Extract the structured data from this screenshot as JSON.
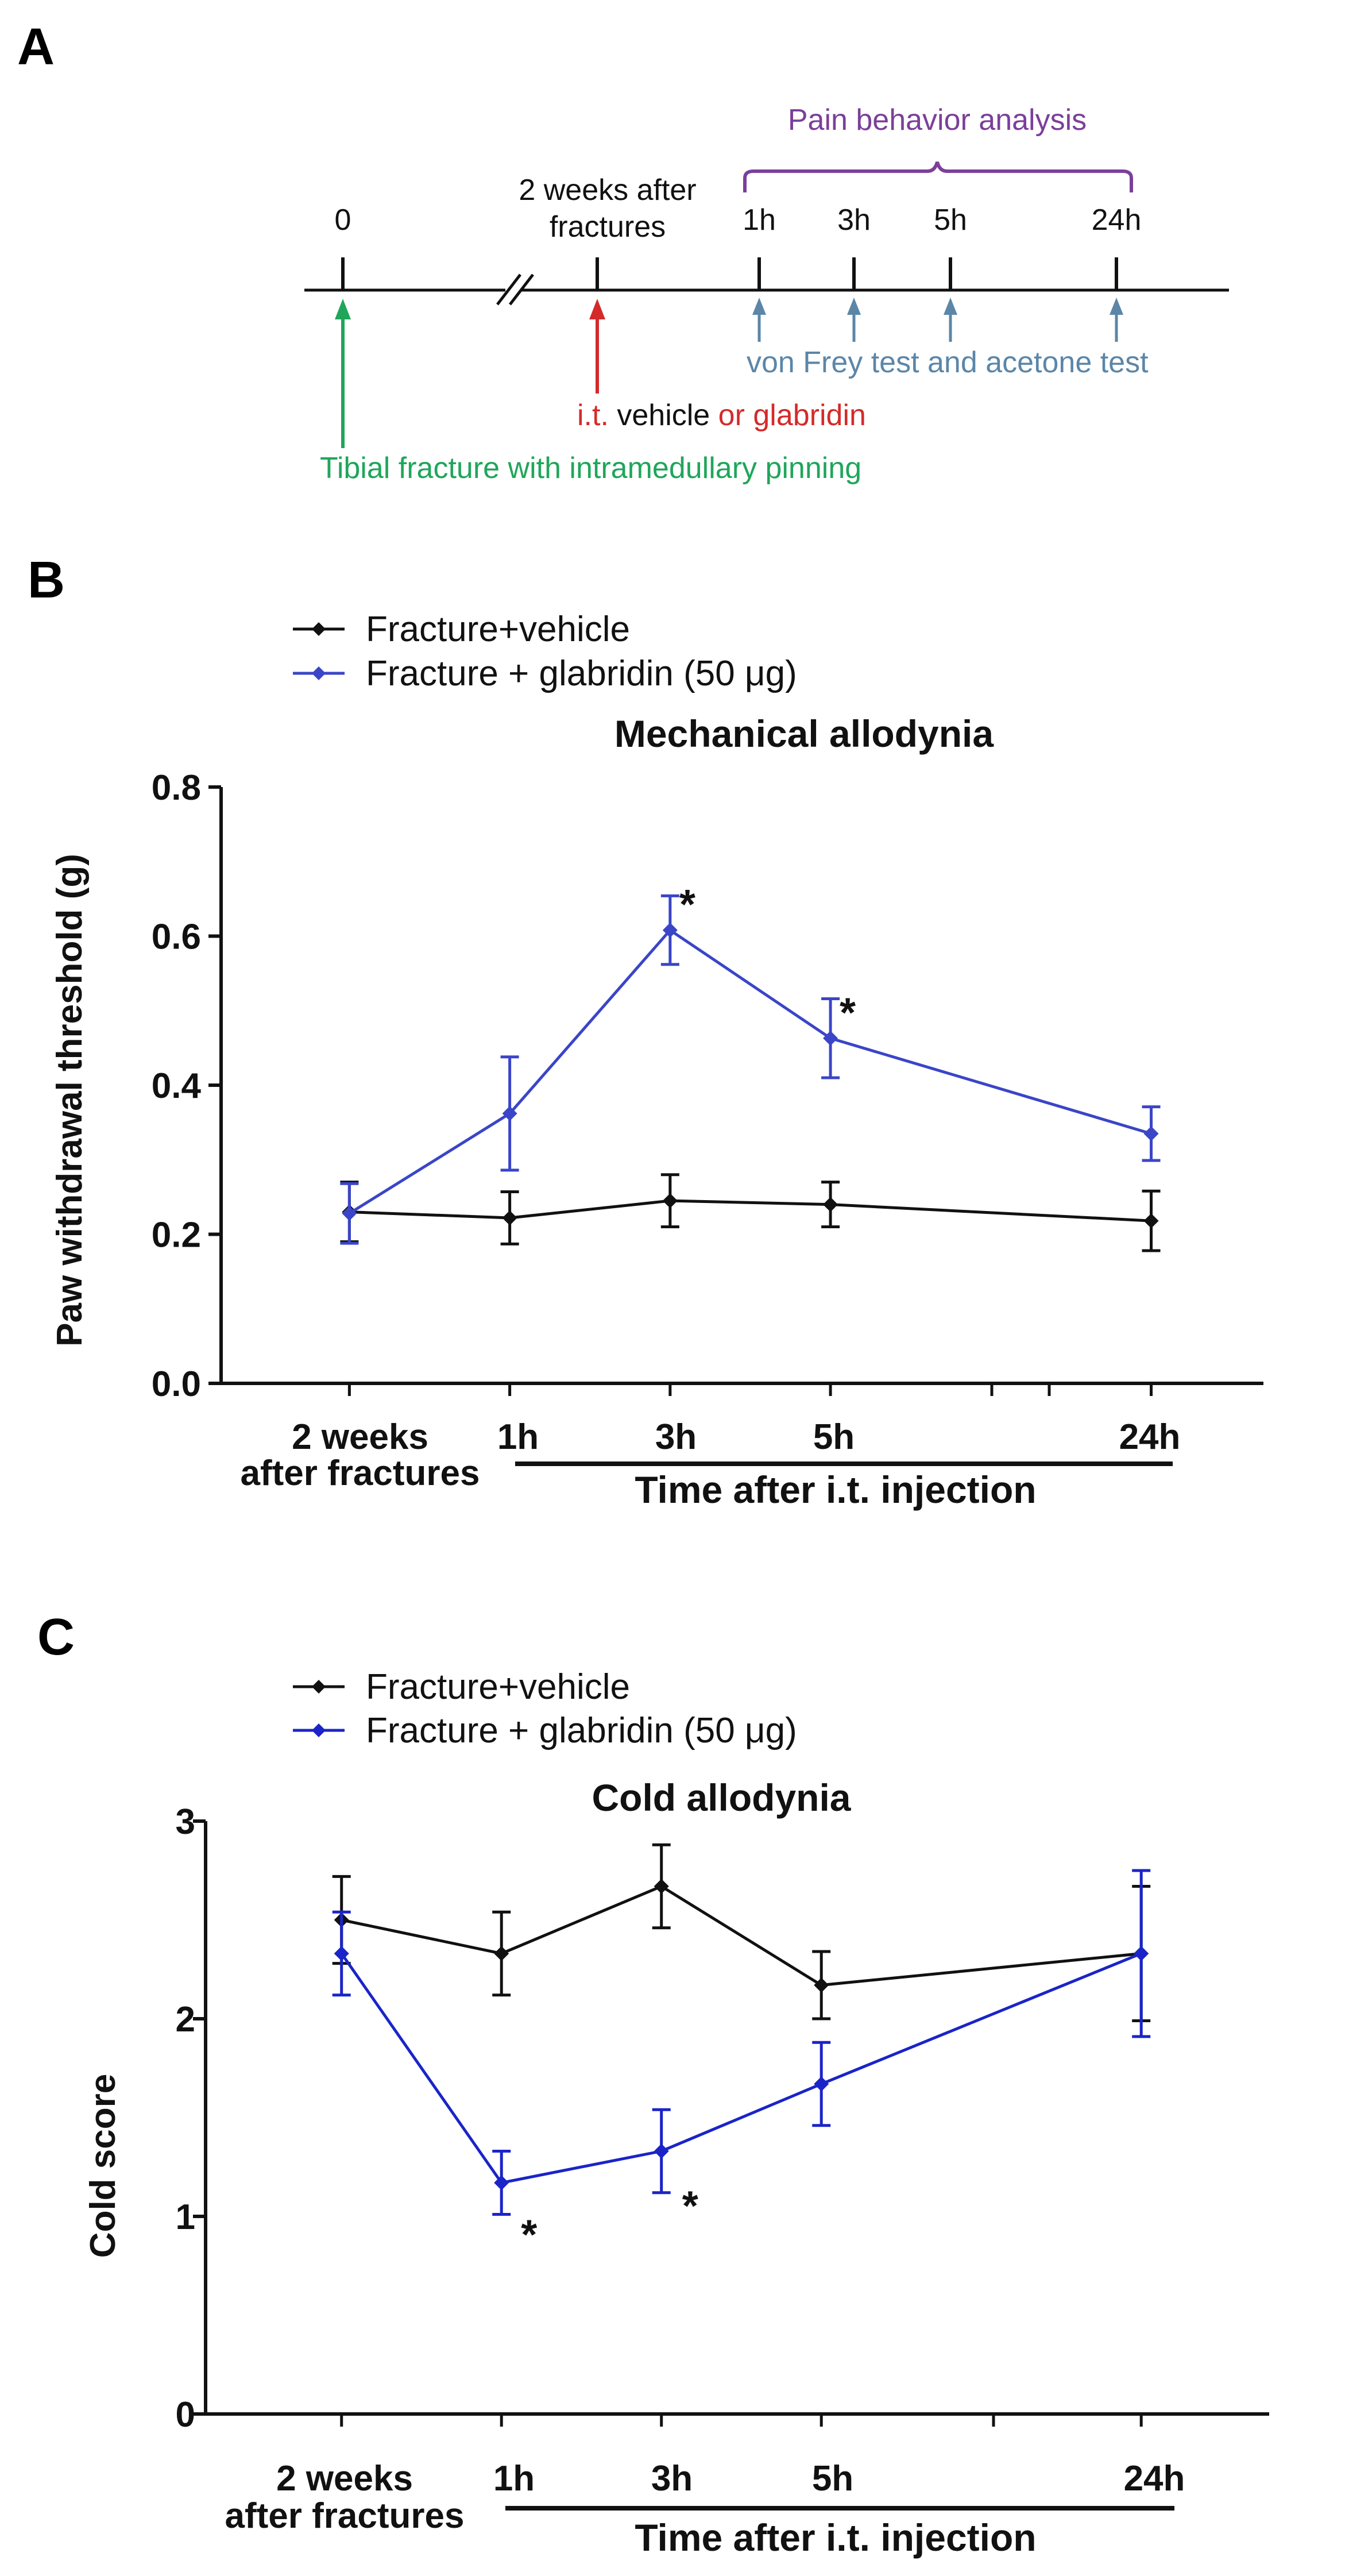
{
  "panels": {
    "a": "A",
    "b": "B",
    "c": "C"
  },
  "timeline": {
    "label_0": "0",
    "two_weeks_line1": "2 weeks after",
    "two_weeks_line2": "fractures",
    "pain_behavior": "Pain behavior analysis",
    "times": [
      "1h",
      "3h",
      "5h",
      "24h"
    ],
    "tests": "von Frey test and acetone test",
    "it": "i.t.",
    "vehicle": " vehicle ",
    "or_glabridin": "or glabridin",
    "fracture": "Tibial fracture with intramedullary pinning",
    "colors": {
      "green": "#1fa65a",
      "red": "#d42a2a",
      "steel": "#5b86a8",
      "purple": "#7b3f9a"
    }
  },
  "chart_data": [
    {
      "type": "line",
      "title": "Mechanical allodynia",
      "ylabel": "Paw withdrawal threshold (g)",
      "xlabel": "Time after i.t. injection",
      "x_first_label_line1": "2 weeks",
      "x_first_label_line2": "after fractures",
      "categories": [
        "2 weeks after fractures",
        "1h",
        "3h",
        "5h",
        "24h"
      ],
      "x_positions": [
        0,
        1,
        2,
        3,
        5
      ],
      "xlim": [
        -0.8,
        5.7
      ],
      "ylim": [
        0,
        0.8
      ],
      "yticks": [
        "0.0",
        "0.2",
        "0.4",
        "0.6",
        "0.8"
      ],
      "ytick_values": [
        0.0,
        0.2,
        0.4,
        0.6,
        0.8
      ],
      "legend": [
        "Fracture+vehicle",
        "Fracture + glabridin (50 μg)"
      ],
      "series": [
        {
          "name": "Fracture+vehicle",
          "color": "#111111",
          "values": [
            0.23,
            0.222,
            0.245,
            0.24,
            0.218
          ],
          "errors": [
            0.04,
            0.035,
            0.035,
            0.03,
            0.04
          ]
        },
        {
          "name": "Fracture + glabridin (50 μg)",
          "color": "#3a45c8",
          "values": [
            0.228,
            0.362,
            0.608,
            0.463,
            0.335
          ],
          "errors": [
            0.04,
            0.076,
            0.046,
            0.053,
            0.036
          ]
        }
      ],
      "annotations": [
        {
          "text": "*",
          "category": "3h"
        },
        {
          "text": "*",
          "category": "5h"
        }
      ]
    },
    {
      "type": "line",
      "title": "Cold allodynia",
      "ylabel": "Cold score",
      "xlabel": "Time after i.t. injection",
      "x_first_label_line1": "2 weeks",
      "x_first_label_line2": "after fractures",
      "categories": [
        "2 weeks after fractures",
        "1h",
        "3h",
        "5h",
        "24h"
      ],
      "x_positions": [
        0,
        1,
        2,
        3,
        5
      ],
      "xlim": [
        -0.85,
        5.8
      ],
      "ylim": [
        0,
        3
      ],
      "yticks": [
        "0",
        "1",
        "2",
        "3"
      ],
      "ytick_values": [
        0,
        1,
        2,
        3
      ],
      "legend": [
        "Fracture+vehicle",
        "Fracture + glabridin (50 μg)"
      ],
      "series": [
        {
          "name": "Fracture+vehicle",
          "color": "#111111",
          "values": [
            2.5,
            2.33,
            2.67,
            2.17,
            2.33
          ],
          "errors": [
            0.22,
            0.21,
            0.21,
            0.17,
            0.34
          ]
        },
        {
          "name": "Fracture + glabridin (50 μg)",
          "color": "#1a24c8",
          "values": [
            2.33,
            1.17,
            1.33,
            1.67,
            2.33
          ],
          "errors": [
            0.21,
            0.16,
            0.21,
            0.21,
            0.42
          ]
        }
      ],
      "annotations": [
        {
          "text": "*",
          "category": "1h"
        },
        {
          "text": "*",
          "category": "3h"
        }
      ]
    }
  ]
}
